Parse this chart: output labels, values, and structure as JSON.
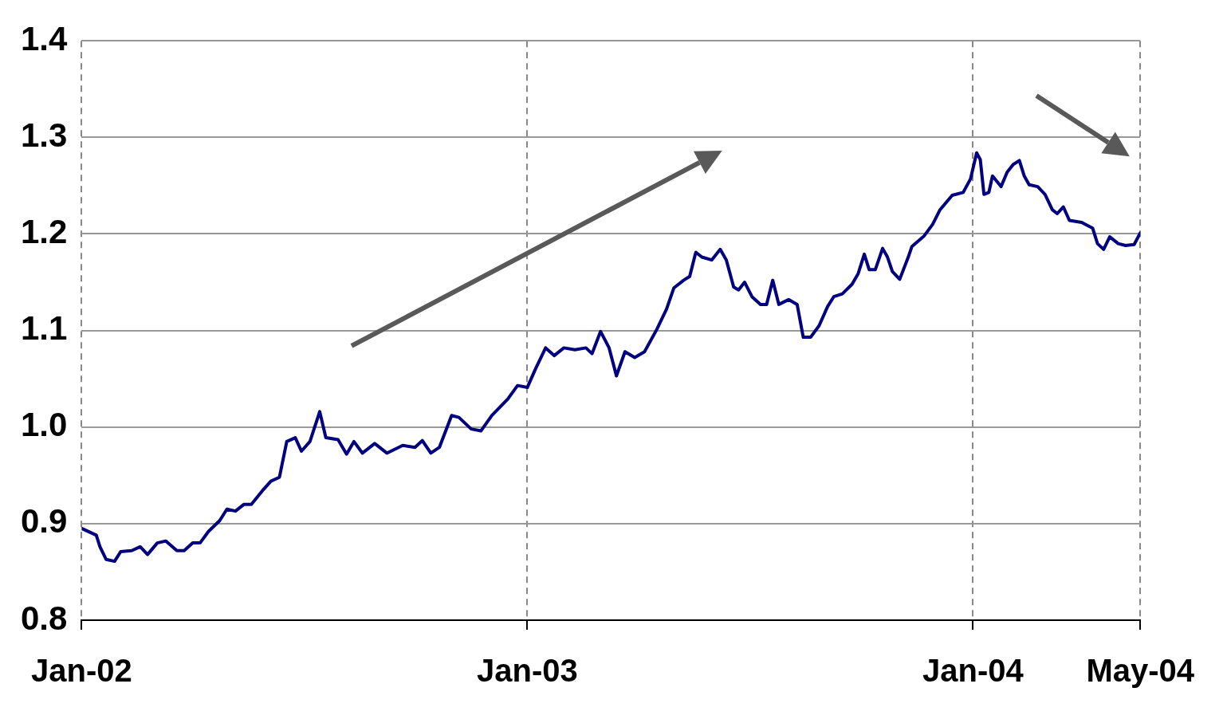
{
  "chart_data": {
    "type": "line",
    "x": [
      "2002-01-01",
      "2002-01-13",
      "2002-01-16",
      "2002-01-21",
      "2002-01-28",
      "2002-02-02",
      "2002-02-11",
      "2002-02-18",
      "2002-02-24",
      "2002-03-04",
      "2002-03-11",
      "2002-03-20",
      "2002-03-26",
      "2002-04-02",
      "2002-04-08",
      "2002-04-15",
      "2002-04-24",
      "2002-04-30",
      "2002-05-07",
      "2002-05-14",
      "2002-05-20",
      "2002-05-29",
      "2002-06-05",
      "2002-06-12",
      "2002-06-18",
      "2002-06-25",
      "2002-06-30",
      "2002-07-07",
      "2002-07-15",
      "2002-07-20",
      "2002-07-30",
      "2002-08-06",
      "2002-08-12",
      "2002-08-19",
      "2002-08-29",
      "2002-09-08",
      "2002-09-21",
      "2002-10-01",
      "2002-10-07",
      "2002-10-14",
      "2002-10-21",
      "2002-10-31",
      "2002-11-06",
      "2002-11-16",
      "2002-11-24",
      "2002-12-03",
      "2002-12-16",
      "2002-12-24",
      "2003-01-01",
      "2003-01-08",
      "2003-01-16",
      "2003-01-23",
      "2003-01-31",
      "2003-02-09",
      "2003-02-18",
      "2003-02-23",
      "2003-03-02",
      "2003-03-09",
      "2003-03-15",
      "2003-03-22",
      "2003-03-30",
      "2003-04-07",
      "2003-04-17",
      "2003-04-25",
      "2003-05-01",
      "2003-05-09",
      "2003-05-14",
      "2003-05-19",
      "2003-05-24",
      "2003-06-01",
      "2003-06-08",
      "2003-06-13",
      "2003-06-19",
      "2003-06-23",
      "2003-06-28",
      "2003-07-04",
      "2003-07-11",
      "2003-07-16",
      "2003-07-21",
      "2003-07-26",
      "2003-08-03",
      "2003-08-10",
      "2003-08-15",
      "2003-08-21",
      "2003-08-28",
      "2003-09-04",
      "2003-09-09",
      "2003-09-16",
      "2003-09-24",
      "2003-09-29",
      "2003-10-04",
      "2003-10-08",
      "2003-10-13",
      "2003-10-19",
      "2003-10-23",
      "2003-10-27",
      "2003-11-02",
      "2003-11-09",
      "2003-11-12",
      "2003-11-22",
      "2003-11-29",
      "2003-12-05",
      "2003-12-15",
      "2003-12-24",
      "2003-12-30",
      "2004-01-04",
      "2004-01-07",
      "2004-01-10",
      "2004-01-14",
      "2004-01-17",
      "2004-01-24",
      "2004-01-29",
      "2004-02-03",
      "2004-02-08",
      "2004-02-12",
      "2004-02-16",
      "2004-02-23",
      "2004-02-29",
      "2004-03-06",
      "2004-03-10",
      "2004-03-15",
      "2004-03-20",
      "2004-03-30",
      "2004-04-08",
      "2004-04-12",
      "2004-04-17",
      "2004-04-22",
      "2004-04-29",
      "2004-05-05",
      "2004-05-12",
      "2004-05-17"
    ],
    "series": [
      {
        "color": "#000080",
        "values": [
          0.895,
          0.888,
          0.876,
          0.863,
          0.861,
          0.871,
          0.872,
          0.876,
          0.868,
          0.88,
          0.882,
          0.872,
          0.872,
          0.88,
          0.88,
          0.892,
          0.903,
          0.915,
          0.913,
          0.92,
          0.92,
          0.934,
          0.944,
          0.948,
          0.985,
          0.989,
          0.975,
          0.985,
          1.016,
          0.989,
          0.987,
          0.972,
          0.985,
          0.973,
          0.983,
          0.973,
          0.981,
          0.979,
          0.986,
          0.973,
          0.979,
          1.012,
          1.01,
          0.998,
          0.996,
          1.012,
          1.029,
          1.043,
          1.041,
          1.061,
          1.082,
          1.074,
          1.082,
          1.08,
          1.082,
          1.076,
          1.099,
          1.082,
          1.053,
          1.078,
          1.072,
          1.078,
          1.101,
          1.122,
          1.144,
          1.152,
          1.156,
          1.181,
          1.176,
          1.173,
          1.184,
          1.173,
          1.145,
          1.142,
          1.15,
          1.135,
          1.127,
          1.127,
          1.152,
          1.127,
          1.132,
          1.127,
          1.093,
          1.093,
          1.105,
          1.125,
          1.135,
          1.138,
          1.148,
          1.159,
          1.179,
          1.163,
          1.163,
          1.185,
          1.176,
          1.161,
          1.153,
          1.176,
          1.187,
          1.198,
          1.21,
          1.225,
          1.24,
          1.243,
          1.257,
          1.284,
          1.277,
          1.241,
          1.243,
          1.26,
          1.249,
          1.264,
          1.272,
          1.276,
          1.26,
          1.251,
          1.249,
          1.241,
          1.225,
          1.221,
          1.228,
          1.214,
          1.212,
          1.206,
          1.19,
          1.184,
          1.197,
          1.19,
          1.188,
          1.189,
          1.201
        ]
      }
    ],
    "xlim": [
      "2002-01-01",
      "2004-05-17"
    ],
    "xticks": [
      {
        "value": "2002-01-01",
        "label": "Jan-02"
      },
      {
        "value": "2003-01-01",
        "label": "Jan-03"
      },
      {
        "value": "2004-01-01",
        "label": "Jan-04"
      },
      {
        "value": "2004-05-17",
        "label": "May-04"
      }
    ],
    "ylim": [
      0.8,
      1.4
    ],
    "yticks": [
      {
        "value": 0.8,
        "label": "0.8"
      },
      {
        "value": 0.9,
        "label": "0.9"
      },
      {
        "value": 1.0,
        "label": "1.0"
      },
      {
        "value": 1.1,
        "label": "1.1"
      },
      {
        "value": 1.2,
        "label": "1.2"
      },
      {
        "value": 1.3,
        "label": "1.3"
      },
      {
        "value": 1.4,
        "label": "1.4"
      }
    ],
    "grid": true,
    "legend": false,
    "marker": "none",
    "line_style": "solid"
  }
}
